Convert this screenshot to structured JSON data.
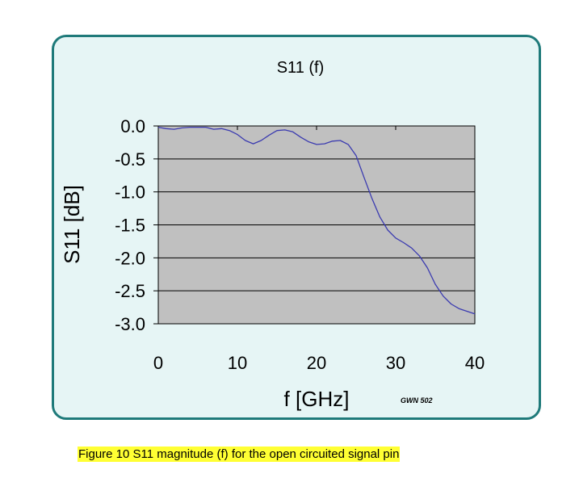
{
  "chart_data": {
    "type": "line",
    "title": "S11 (f)",
    "xlabel": "f [GHz]",
    "ylabel": "S11 [dB]",
    "xlim": [
      0,
      40
    ],
    "ylim": [
      -3.0,
      0.0
    ],
    "x_ticks": [
      "0",
      "10",
      "20",
      "30",
      "40"
    ],
    "y_ticks": [
      "0.0",
      "-0.5",
      "-1.0",
      "-1.5",
      "-2.0",
      "-2.5",
      "-3.0"
    ],
    "grid": "horizontal",
    "legend": "none",
    "series": [
      {
        "color": "#3b3bb0",
        "points": [
          [
            0,
            -0.02
          ],
          [
            1,
            -0.04
          ],
          [
            2,
            -0.05
          ],
          [
            3,
            -0.03
          ],
          [
            4,
            -0.02
          ],
          [
            5,
            -0.02
          ],
          [
            6,
            -0.02
          ],
          [
            7,
            -0.05
          ],
          [
            8,
            -0.04
          ],
          [
            9,
            -0.07
          ],
          [
            10,
            -0.13
          ],
          [
            11,
            -0.22
          ],
          [
            12,
            -0.27
          ],
          [
            13,
            -0.22
          ],
          [
            14,
            -0.14
          ],
          [
            15,
            -0.07
          ],
          [
            16,
            -0.06
          ],
          [
            17,
            -0.09
          ],
          [
            18,
            -0.17
          ],
          [
            19,
            -0.24
          ],
          [
            20,
            -0.28
          ],
          [
            21,
            -0.27
          ],
          [
            22,
            -0.23
          ],
          [
            23,
            -0.22
          ],
          [
            24,
            -0.28
          ],
          [
            25,
            -0.45
          ],
          [
            26,
            -0.78
          ],
          [
            27,
            -1.1
          ],
          [
            28,
            -1.38
          ],
          [
            29,
            -1.58
          ],
          [
            30,
            -1.7
          ],
          [
            31,
            -1.77
          ],
          [
            32,
            -1.85
          ],
          [
            33,
            -1.97
          ],
          [
            34,
            -2.15
          ],
          [
            35,
            -2.4
          ],
          [
            36,
            -2.58
          ],
          [
            37,
            -2.7
          ],
          [
            38,
            -2.77
          ],
          [
            39,
            -2.81
          ],
          [
            40,
            -2.85
          ]
        ]
      }
    ]
  },
  "colors": {
    "panel_border": "#1f7a7a",
    "panel_fill": "#e6f5f5",
    "plot_fill": "#c0c0c0",
    "line": "#3b3bb0",
    "caption_highlight": "#ffff33"
  },
  "stamp": "GWN 502",
  "caption": "Figure 10  S11 magnitude (f) for the open circuited signal pin"
}
